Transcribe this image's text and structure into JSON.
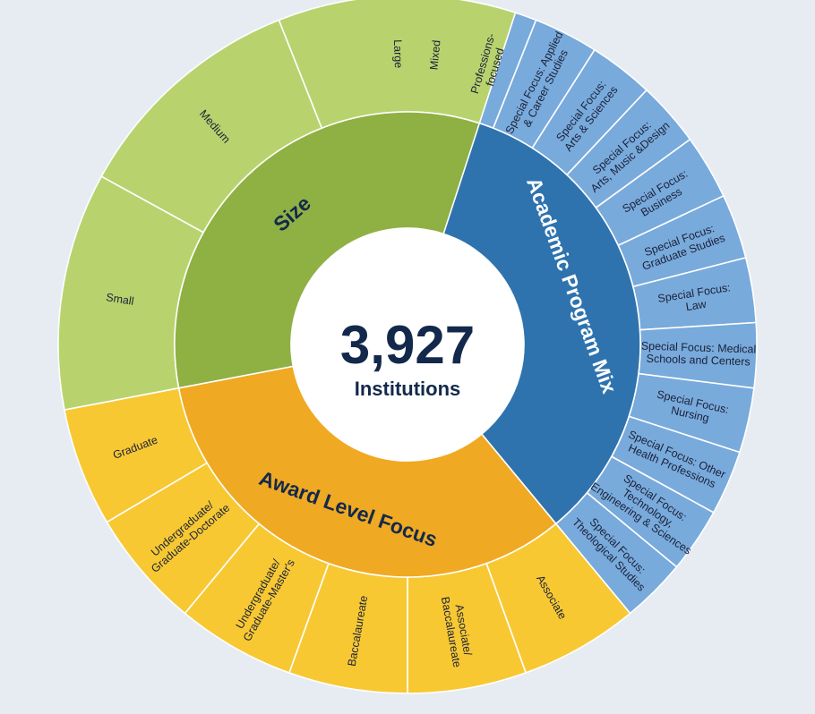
{
  "center": {
    "total": "3,927",
    "unit": "Institutions"
  },
  "chart_data": {
    "type": "sunburst",
    "center_value": 3927,
    "groups": [
      {
        "name": "Academic Program Mix",
        "color": "#2e73ae",
        "child_color": "#79aadc",
        "children": [
          {
            "label": "Mixed",
            "share": 0.03
          },
          {
            "label": "Professions-\nfocused",
            "share": 0.03
          },
          {
            "label": "Special Focus: Applied\n& Career Studies",
            "share": 0.03
          },
          {
            "label": "Special Focus:\nArts & Sciences",
            "share": 0.03
          },
          {
            "label": "Special Focus:\nArts, Music &Design",
            "share": 0.03
          },
          {
            "label": "Special Focus:\nBusiness",
            "share": 0.03
          },
          {
            "label": "Special Focus:\nGraduate Studies",
            "share": 0.03
          },
          {
            "label": "Special Focus:\nLaw",
            "share": 0.03
          },
          {
            "label": "Special Focus: Medical\nSchools and Centers",
            "share": 0.03
          },
          {
            "label": "Special Focus:\nNursing",
            "share": 0.03
          },
          {
            "label": "Special Focus: Other\nHealth Professions",
            "share": 0.03
          },
          {
            "label": "Special Focus:\nTechnology,\nEngineering & Sciences",
            "share": 0.03
          },
          {
            "label": "Special Focus:\nTheological Studies",
            "share": 0.03
          }
        ]
      },
      {
        "name": "Award Level Focus",
        "color": "#f0a922",
        "child_color": "#f8c833",
        "children": [
          {
            "label": "Associate",
            "share": 0.055
          },
          {
            "label": "Associate/\nBaccalaureate",
            "share": 0.055
          },
          {
            "label": "Baccalaureate",
            "share": 0.055
          },
          {
            "label": "Undergraduate/\nGraduate-Master's",
            "share": 0.055
          },
          {
            "label": "Undergraduate/\nGraduate-Doctorate",
            "share": 0.055
          },
          {
            "label": "Graduate",
            "share": 0.055
          }
        ]
      },
      {
        "name": "Size",
        "color": "#8fb043",
        "child_color": "#b8d36e",
        "children": [
          {
            "label": "Small",
            "share": 0.11
          },
          {
            "label": "Medium",
            "share": 0.11
          },
          {
            "label": "Large",
            "share": 0.11
          }
        ]
      }
    ]
  }
}
